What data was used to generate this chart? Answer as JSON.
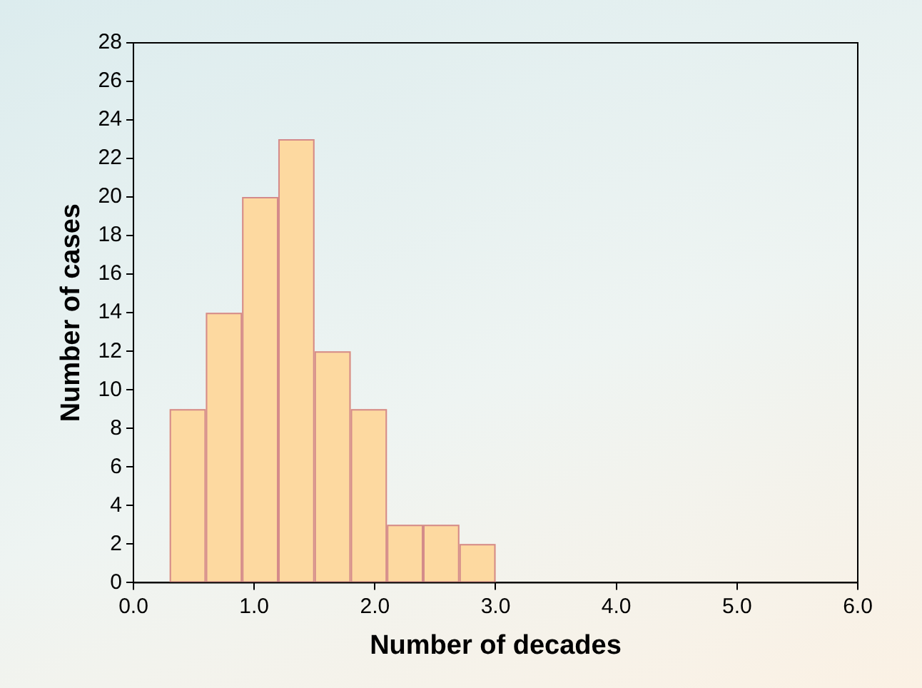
{
  "chart_data": {
    "type": "histogram",
    "xlabel": "Number of decades",
    "ylabel": "Number of cases",
    "bins": [
      0.3,
      0.6,
      0.9,
      1.2,
      1.5,
      1.8,
      2.1,
      2.4,
      2.7,
      3.0
    ],
    "values": [
      9,
      14,
      20,
      23,
      12,
      9,
      3,
      3,
      2
    ],
    "color": "#fdd9a0",
    "xlim": [
      0,
      6
    ],
    "xticks": [
      {
        "value": 0,
        "label": "0.0"
      },
      {
        "value": 1,
        "label": "1.0"
      },
      {
        "value": 2,
        "label": "2.0"
      },
      {
        "value": 3,
        "label": "3.0"
      },
      {
        "value": 4,
        "label": "4.0"
      },
      {
        "value": 5,
        "label": "5.0"
      },
      {
        "value": 6,
        "label": "6.0"
      }
    ],
    "ylim": [
      0,
      28
    ],
    "yticks": [
      0,
      2,
      4,
      6,
      8,
      10,
      12,
      14,
      16,
      18,
      20,
      22,
      24,
      26,
      28
    ],
    "grid": false,
    "legend": false
  }
}
